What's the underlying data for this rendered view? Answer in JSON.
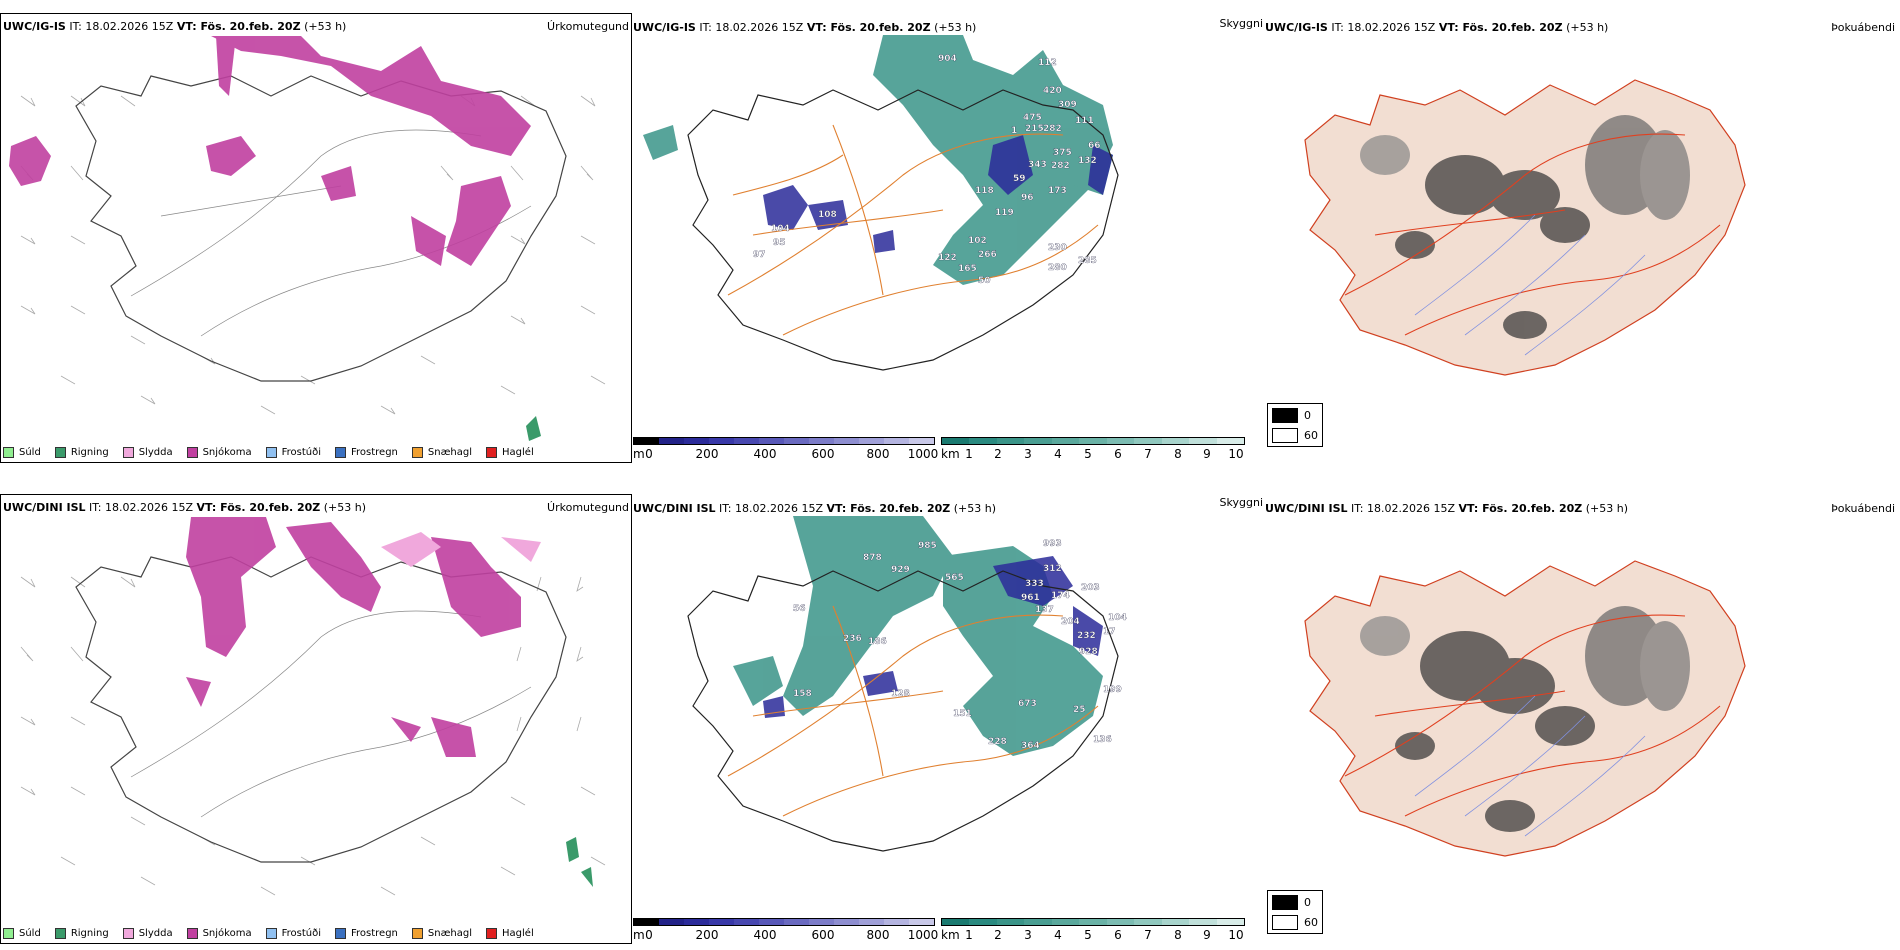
{
  "rows": [
    {
      "id": "igis",
      "model_label": "UWC/IG-IS",
      "it_label": "IT: 18.02.2026 15Z",
      "vt_label": "VT: Fös. 20.feb. 20Z",
      "lead_label": "(+53 h)",
      "precip_title": "Úrkomutegund",
      "vis_title": "Skyggni",
      "cloud_title": "Þokuábendi",
      "vis_numbers": [
        "904",
        "112",
        "420",
        "309",
        "475",
        "215",
        "282",
        "1",
        "111",
        "375",
        "282",
        "132",
        "66",
        "59",
        "173",
        "343",
        "96",
        "119",
        "104",
        "108",
        "118",
        "95",
        "97",
        "102",
        "266",
        "122",
        "165",
        "50",
        "230",
        "280",
        "285"
      ],
      "cloud_legend": [
        "0",
        "60"
      ]
    },
    {
      "id": "dini",
      "model_label": "UWC/DINI ISL",
      "it_label": "IT: 18.02.2026 15Z",
      "vt_label": "VT: Fös. 20.feb. 20Z",
      "lead_label": "(+53 h)",
      "precip_title": "Úrkomutegund",
      "vis_title": "Skyggni",
      "cloud_title": "Þokuábendi",
      "vis_numbers": [
        "985",
        "878",
        "929",
        "565",
        "993",
        "312",
        "333",
        "961",
        "174",
        "203",
        "137",
        "204",
        "232",
        "928",
        "17",
        "104",
        "236",
        "186",
        "56",
        "158",
        "128",
        "151",
        "673",
        "199",
        "25",
        "228",
        "364",
        "136"
      ],
      "cloud_legend": [
        "0",
        "60"
      ]
    }
  ],
  "precip_legend": [
    {
      "label": "Súld",
      "color": "#90ee90"
    },
    {
      "label": "Rigning",
      "color": "#3a9a6a"
    },
    {
      "label": "Slydda",
      "color": "#f0a8dc"
    },
    {
      "label": "Snjókoma",
      "color": "#c040a0"
    },
    {
      "label": "Frostúði",
      "color": "#90c0f0"
    },
    {
      "label": "Frostregn",
      "color": "#3a70c0"
    },
    {
      "label": "Snæhagl",
      "color": "#f0a030"
    },
    {
      "label": "Haglél",
      "color": "#e02020"
    }
  ],
  "ceiling_scale": {
    "unit": "m",
    "ticks": [
      "0",
      "200",
      "400",
      "600",
      "800",
      "1000"
    ],
    "colors": [
      "#000000",
      "#222288",
      "#2b2b9a",
      "#3838a8",
      "#4848b0",
      "#5858b8",
      "#6a6ac0",
      "#7c7cc8",
      "#8e8ed0",
      "#a0a0d8",
      "#b4b4e0",
      "#c8c8e8"
    ]
  },
  "visibility_scale": {
    "unit": "km",
    "ticks": [
      "1",
      "2",
      "3",
      "4",
      "5",
      "6",
      "7",
      "8",
      "9",
      "10"
    ],
    "colors": [
      "#1a7a70",
      "#2a8a80",
      "#3a9488",
      "#4a9e92",
      "#5aa89c",
      "#6ab2a6",
      "#7cbcb2",
      "#90c8be",
      "#a8d4cc",
      "#c0e0da",
      "#d8ece8"
    ]
  }
}
